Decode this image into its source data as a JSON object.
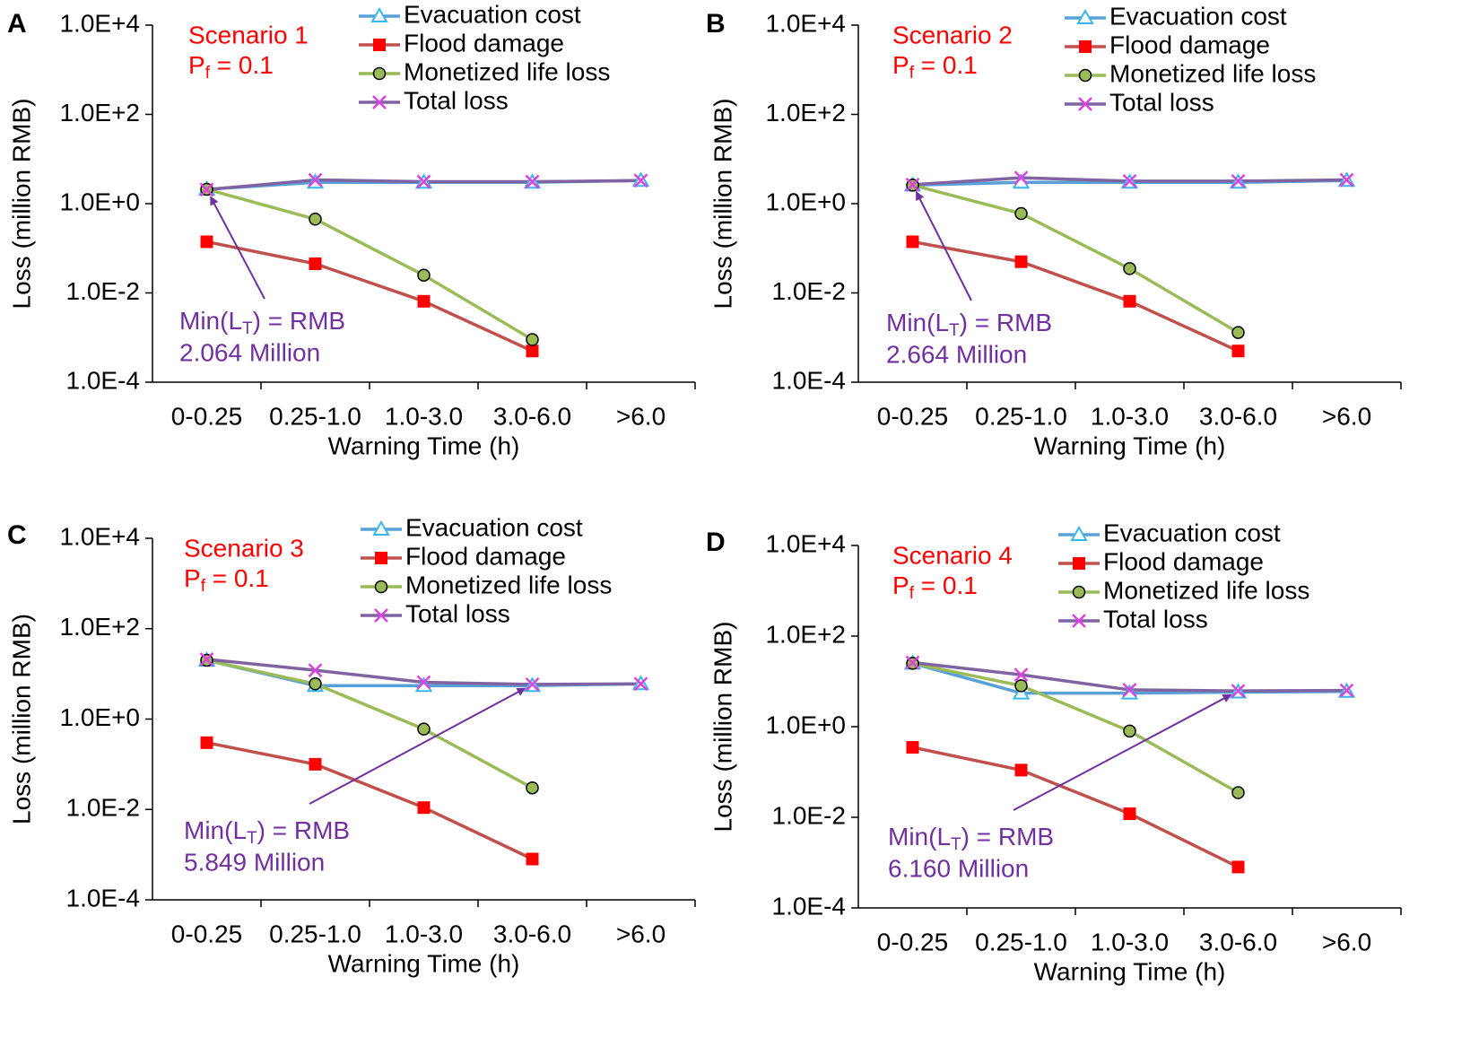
{
  "figure": {
    "y_axis_label": "Loss (million RMB)",
    "x_axis_label": "Warning Time (h)"
  },
  "colors": {
    "evacuation": "#5aa0d8",
    "evacuation_marker": "#39b6ea",
    "flood": "#c0504d",
    "flood_marker": "#ff0000",
    "life": "#9bbb59",
    "total": "#8064a2",
    "total_marker": "#e040e0",
    "scenario_text": "#ff0000",
    "annotation": "#7030a0"
  },
  "chart_data": [
    {
      "panel": "A",
      "type": "line",
      "y_scale": "log10",
      "ylim": [
        0.0001,
        10000
      ],
      "y_ticks": [
        "1.0E+4",
        "1.0E+2",
        "1.0E+0",
        "1.0E-2",
        "1.0E-4"
      ],
      "ylabel": "Loss (million RMB)",
      "xlabel": "Warning Time (h)",
      "categories": [
        "0-0.25",
        "0.25-1.0",
        "1.0-3.0",
        "3.0-6.0",
        ">6.0"
      ],
      "scenario_label": "Scenario 1",
      "pf_label": {
        "base": "P",
        "sub": "f",
        "rest": " = 0.1"
      },
      "annotation": {
        "line1_pre": "Min(L",
        "line1_sub": "T",
        "line1_post": ") = RMB",
        "line2": "2.064 Million",
        "target_index": 0
      },
      "series": [
        {
          "name": "Evacuation cost",
          "values": [
            2.1,
            3.0,
            3.0,
            3.0,
            3.3
          ]
        },
        {
          "name": "Flood damage",
          "values": [
            0.14,
            0.045,
            0.0065,
            0.0005,
            null
          ]
        },
        {
          "name": "Monetized life loss",
          "values": [
            2.1,
            0.45,
            0.025,
            0.0009,
            null
          ]
        },
        {
          "name": "Total loss",
          "values": [
            2.064,
            3.4,
            3.1,
            3.1,
            3.3
          ]
        }
      ]
    },
    {
      "panel": "B",
      "type": "line",
      "y_scale": "log10",
      "ylim": [
        0.0001,
        10000
      ],
      "y_ticks": [
        "1.0E+4",
        "1.0E+2",
        "1.0E+0",
        "1.0E-2",
        "1.0E-4"
      ],
      "ylabel": "Loss (million RMB)",
      "xlabel": "Warning Time (h)",
      "categories": [
        "0-0.25",
        "0.25-1.0",
        "1.0-3.0",
        "3.0-6.0",
        ">6.0"
      ],
      "scenario_label": "Scenario 2",
      "pf_label": {
        "base": "P",
        "sub": "f",
        "rest": " = 0.1"
      },
      "annotation": {
        "line1_pre": "Min(L",
        "line1_sub": "T",
        "line1_post": ") = RMB",
        "line2": "2.664 Million",
        "target_index": 0
      },
      "series": [
        {
          "name": "Evacuation cost",
          "values": [
            2.6,
            3.0,
            3.0,
            3.0,
            3.3
          ]
        },
        {
          "name": "Flood damage",
          "values": [
            0.14,
            0.05,
            0.0065,
            0.0005,
            null
          ]
        },
        {
          "name": "Monetized life loss",
          "values": [
            2.6,
            0.6,
            0.035,
            0.0013,
            null
          ]
        },
        {
          "name": "Total loss",
          "values": [
            2.664,
            3.8,
            3.2,
            3.2,
            3.4
          ]
        }
      ]
    },
    {
      "panel": "C",
      "type": "line",
      "y_scale": "log10",
      "ylim": [
        0.0001,
        10000
      ],
      "y_ticks": [
        "1.0E+4",
        "1.0E+2",
        "1.0E+0",
        "1.0E-2",
        "1.0E-4"
      ],
      "ylabel": "Loss (million RMB)",
      "xlabel": "Warning Time (h)",
      "categories": [
        "0-0.25",
        "0.25-1.0",
        "1.0-3.0",
        "3.0-6.0",
        ">6.0"
      ],
      "scenario_label": "Scenario 3",
      "pf_label": {
        "base": "P",
        "sub": "f",
        "rest": " = 0.1"
      },
      "annotation": {
        "line1_pre": "Min(L",
        "line1_sub": "T",
        "line1_post": ") = RMB",
        "line2": "5.849 Million",
        "target_index": 3
      },
      "series": [
        {
          "name": "Evacuation cost",
          "values": [
            20,
            5.5,
            5.5,
            5.5,
            6.0
          ]
        },
        {
          "name": "Flood damage",
          "values": [
            0.3,
            0.1,
            0.011,
            0.0008,
            null
          ]
        },
        {
          "name": "Monetized life loss",
          "values": [
            20,
            6.0,
            0.6,
            0.03,
            null
          ]
        },
        {
          "name": "Total loss",
          "values": [
            21,
            12,
            6.5,
            5.849,
            6.0
          ]
        }
      ]
    },
    {
      "panel": "D",
      "type": "line",
      "y_scale": "log10",
      "ylim": [
        0.0001,
        10000
      ],
      "y_ticks": [
        "1.0E+4",
        "1.0E+2",
        "1.0E+0",
        "1.0E-2",
        "1.0E-4"
      ],
      "ylabel": "Loss (million RMB)",
      "xlabel": "Warning Time (h)",
      "categories": [
        "0-0.25",
        "0.25-1.0",
        "1.0-3.0",
        "3.0-6.0",
        ">6.0"
      ],
      "scenario_label": "Scenario 4",
      "pf_label": {
        "base": "P",
        "sub": "f",
        "rest": " = 0.1"
      },
      "annotation": {
        "line1_pre": "Min(L",
        "line1_sub": "T",
        "line1_post": ") = RMB",
        "line2": "6.160 Million",
        "target_index": 3
      },
      "series": [
        {
          "name": "Evacuation cost",
          "values": [
            25,
            5.5,
            5.5,
            5.8,
            6.0
          ]
        },
        {
          "name": "Flood damage",
          "values": [
            0.35,
            0.11,
            0.012,
            0.0008,
            null
          ]
        },
        {
          "name": "Monetized life loss",
          "values": [
            25,
            8,
            0.8,
            0.035,
            null
          ]
        },
        {
          "name": "Total loss",
          "values": [
            26,
            14,
            6.5,
            6.16,
            6.3
          ]
        }
      ]
    }
  ]
}
